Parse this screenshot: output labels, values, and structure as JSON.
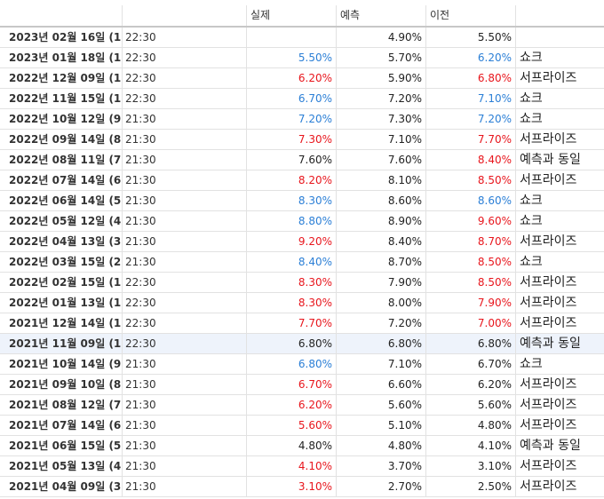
{
  "headers": [
    "",
    "",
    "실제",
    "예측",
    "이전",
    ""
  ],
  "rows": [
    {
      "date": "2023년 02월 16일 (1",
      "time": "22:30",
      "actual": "",
      "actual_color": "black",
      "forecast": "4.90%",
      "previous": "5.50%",
      "previous_color": "black",
      "result": ""
    },
    {
      "date": "2023년 01월 18일 (1",
      "time": "22:30",
      "actual": "5.50%",
      "actual_color": "blue",
      "forecast": "5.70%",
      "previous": "6.20%",
      "previous_color": "blue",
      "result": "쇼크"
    },
    {
      "date": "2022년 12월 09일 (1",
      "time": "22:30",
      "actual": "6.20%",
      "actual_color": "red",
      "forecast": "5.90%",
      "previous": "6.80%",
      "previous_color": "red",
      "result": "서프라이즈"
    },
    {
      "date": "2022년 11월 15일 (1",
      "time": "22:30",
      "actual": "6.70%",
      "actual_color": "blue",
      "forecast": "7.20%",
      "previous": "7.10%",
      "previous_color": "blue",
      "result": "쇼크"
    },
    {
      "date": "2022년 10월 12일 (9",
      "time": "21:30",
      "actual": "7.20%",
      "actual_color": "blue",
      "forecast": "7.30%",
      "previous": "7.20%",
      "previous_color": "blue",
      "result": "쇼크"
    },
    {
      "date": "2022년 09월 14일 (8",
      "time": "21:30",
      "actual": "7.30%",
      "actual_color": "red",
      "forecast": "7.10%",
      "previous": "7.70%",
      "previous_color": "red",
      "result": "서프라이즈"
    },
    {
      "date": "2022년 08월 11일 (7",
      "time": "21:30",
      "actual": "7.60%",
      "actual_color": "black",
      "forecast": "7.60%",
      "previous": "8.40%",
      "previous_color": "red",
      "result": "예측과 동일"
    },
    {
      "date": "2022년 07월 14일 (6",
      "time": "21:30",
      "actual": "8.20%",
      "actual_color": "red",
      "forecast": "8.10%",
      "previous": "8.50%",
      "previous_color": "red",
      "result": "서프라이즈"
    },
    {
      "date": "2022년 06월 14일 (5",
      "time": "21:30",
      "actual": "8.30%",
      "actual_color": "blue",
      "forecast": "8.60%",
      "previous": "8.60%",
      "previous_color": "blue",
      "result": "쇼크"
    },
    {
      "date": "2022년 05월 12일 (4",
      "time": "21:30",
      "actual": "8.80%",
      "actual_color": "blue",
      "forecast": "8.90%",
      "previous": "9.60%",
      "previous_color": "red",
      "result": "쇼크"
    },
    {
      "date": "2022년 04월 13일 (3",
      "time": "21:30",
      "actual": "9.20%",
      "actual_color": "red",
      "forecast": "8.40%",
      "previous": "8.70%",
      "previous_color": "red",
      "result": "서프라이즈"
    },
    {
      "date": "2022년 03월 15일 (2",
      "time": "21:30",
      "actual": "8.40%",
      "actual_color": "blue",
      "forecast": "8.70%",
      "previous": "8.50%",
      "previous_color": "red",
      "result": "쇼크"
    },
    {
      "date": "2022년 02월 15일 (1",
      "time": "22:30",
      "actual": "8.30%",
      "actual_color": "red",
      "forecast": "7.90%",
      "previous": "8.50%",
      "previous_color": "red",
      "result": "서프라이즈"
    },
    {
      "date": "2022년 01월 13일 (1",
      "time": "22:30",
      "actual": "8.30%",
      "actual_color": "red",
      "forecast": "8.00%",
      "previous": "7.90%",
      "previous_color": "red",
      "result": "서프라이즈"
    },
    {
      "date": "2021년 12월 14일 (1",
      "time": "22:30",
      "actual": "7.70%",
      "actual_color": "red",
      "forecast": "7.20%",
      "previous": "7.00%",
      "previous_color": "red",
      "result": "서프라이즈"
    },
    {
      "date": "2021년 11월 09일 (1",
      "time": "22:30",
      "actual": "6.80%",
      "actual_color": "black",
      "forecast": "6.80%",
      "previous": "6.80%",
      "previous_color": "black",
      "result": "예측과 동일",
      "selected": true
    },
    {
      "date": "2021년 10월 14일 (9",
      "time": "21:30",
      "actual": "6.80%",
      "actual_color": "blue",
      "forecast": "7.10%",
      "previous": "6.70%",
      "previous_color": "black",
      "result": "쇼크"
    },
    {
      "date": "2021년 09월 10일 (8",
      "time": "21:30",
      "actual": "6.70%",
      "actual_color": "red",
      "forecast": "6.60%",
      "previous": "6.20%",
      "previous_color": "black",
      "result": "서프라이즈"
    },
    {
      "date": "2021년 08월 12일 (7",
      "time": "21:30",
      "actual": "6.20%",
      "actual_color": "red",
      "forecast": "5.60%",
      "previous": "5.60%",
      "previous_color": "black",
      "result": "서프라이즈"
    },
    {
      "date": "2021년 07월 14일 (6",
      "time": "21:30",
      "actual": "5.60%",
      "actual_color": "red",
      "forecast": "5.10%",
      "previous": "4.80%",
      "previous_color": "black",
      "result": "서프라이즈"
    },
    {
      "date": "2021년 06월 15일 (5",
      "time": "21:30",
      "actual": "4.80%",
      "actual_color": "black",
      "forecast": "4.80%",
      "previous": "4.10%",
      "previous_color": "black",
      "result": "예측과 동일"
    },
    {
      "date": "2021년 05월 13일 (4",
      "time": "21:30",
      "actual": "4.10%",
      "actual_color": "red",
      "forecast": "3.70%",
      "previous": "3.10%",
      "previous_color": "black",
      "result": "서프라이즈"
    },
    {
      "date": "2021년 04월 09일 (3",
      "time": "21:30",
      "actual": "3.10%",
      "actual_color": "red",
      "forecast": "2.70%",
      "previous": "2.50%",
      "previous_color": "black",
      "result": "서프라이즈"
    }
  ]
}
